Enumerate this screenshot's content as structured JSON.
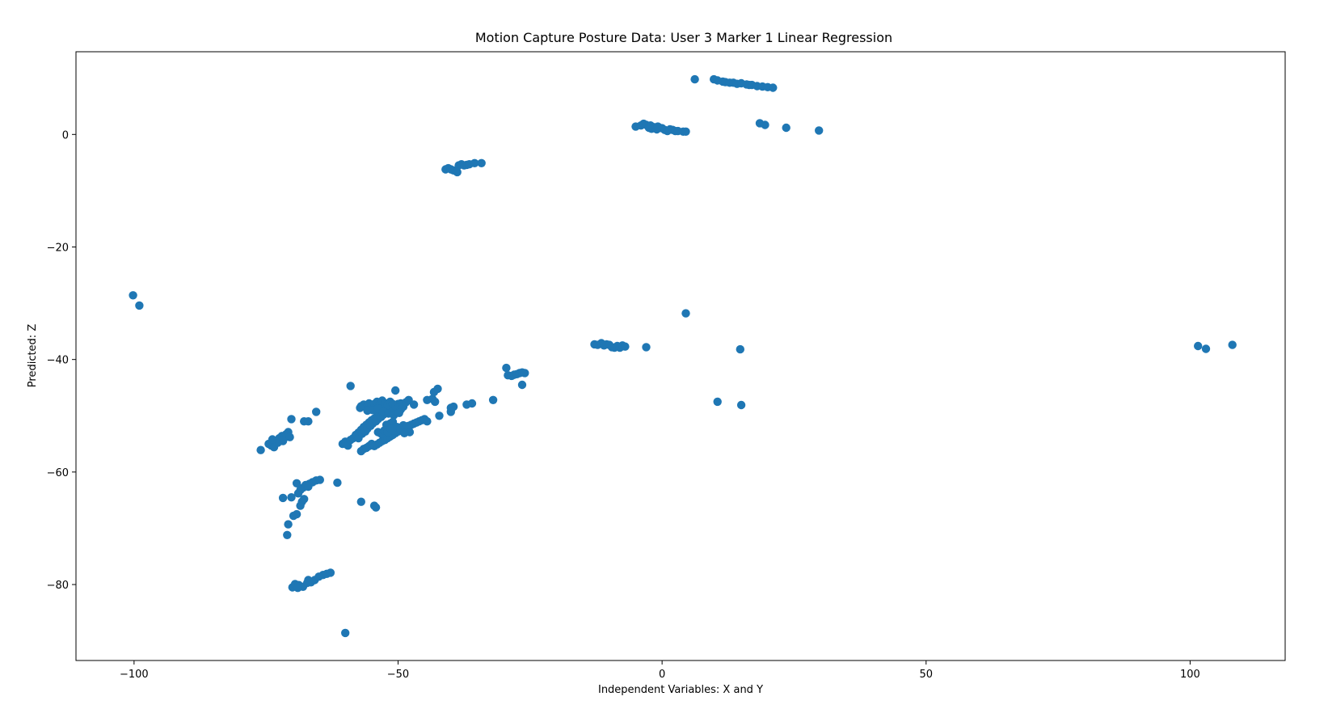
{
  "chart_data": {
    "type": "scatter",
    "title": "Motion Capture Posture Data: User 3 Marker 1 Linear Regression",
    "xlabel": "Independent Variables: X and Y",
    "ylabel": "Predicted: Z",
    "xlim": [
      -111,
      118
    ],
    "ylim": [
      -93.5,
      14.7
    ],
    "xticks": [
      {
        "value": -100,
        "label": "−100"
      },
      {
        "value": -50,
        "label": "−50"
      },
      {
        "value": 0,
        "label": "0"
      },
      {
        "value": 50,
        "label": "50"
      },
      {
        "value": 100,
        "label": "100"
      }
    ],
    "yticks": [
      {
        "value": 0,
        "label": "0"
      },
      {
        "value": -20,
        "label": "−20"
      },
      {
        "value": -40,
        "label": "−40"
      },
      {
        "value": -60,
        "label": "−60"
      },
      {
        "value": -80,
        "label": "−80"
      }
    ],
    "grid": false,
    "color": "#1f77b4",
    "series": [
      {
        "points": [
          [
            -100.2,
            -28.6
          ],
          [
            -99.0,
            -30.4
          ],
          [
            -60.0,
            -88.6
          ],
          [
            -70.0,
            -80.5
          ],
          [
            -69.5,
            -79.9
          ],
          [
            -68.8,
            -80.1
          ],
          [
            -68.0,
            -80.4
          ],
          [
            -67.2,
            -79.7
          ],
          [
            -66.5,
            -79.6
          ],
          [
            -65.8,
            -79.2
          ],
          [
            -65.0,
            -78.6
          ],
          [
            -64.2,
            -78.3
          ],
          [
            -63.5,
            -78.1
          ],
          [
            -62.8,
            -77.9
          ],
          [
            -69.0,
            -80.6
          ],
          [
            -67.0,
            -79.2
          ],
          [
            -71.0,
            -71.2
          ],
          [
            -70.8,
            -69.3
          ],
          [
            -69.8,
            -67.8
          ],
          [
            -69.2,
            -67.5
          ],
          [
            -68.5,
            -66.0
          ],
          [
            -68.2,
            -65.3
          ],
          [
            -67.8,
            -64.8
          ],
          [
            -70.2,
            -64.5
          ],
          [
            -71.8,
            -64.6
          ],
          [
            -68.0,
            -62.8
          ],
          [
            -67.5,
            -62.3
          ],
          [
            -66.8,
            -62.1
          ],
          [
            -66.2,
            -61.8
          ],
          [
            -65.5,
            -61.5
          ],
          [
            -64.8,
            -61.4
          ],
          [
            -69.2,
            -62.0
          ],
          [
            -68.5,
            -63.2
          ],
          [
            -67.0,
            -62.6
          ],
          [
            -68.9,
            -63.8
          ],
          [
            -61.5,
            -61.9
          ],
          [
            -57.0,
            -65.3
          ],
          [
            -54.5,
            -66.0
          ],
          [
            -54.2,
            -66.3
          ],
          [
            -76.0,
            -56.1
          ],
          [
            -74.5,
            -55.0
          ],
          [
            -74.0,
            -55.3
          ],
          [
            -73.5,
            -55.6
          ],
          [
            -73.2,
            -54.5
          ],
          [
            -72.8,
            -54.8
          ],
          [
            -72.5,
            -54.0
          ],
          [
            -72.0,
            -53.6
          ],
          [
            -71.5,
            -53.9
          ],
          [
            -71.2,
            -53.3
          ],
          [
            -70.8,
            -52.9
          ],
          [
            -70.5,
            -53.8
          ],
          [
            -70.2,
            -50.6
          ],
          [
            -73.8,
            -54.2
          ],
          [
            -71.8,
            -54.5
          ],
          [
            -67.8,
            -51.0
          ],
          [
            -67.0,
            -51.0
          ],
          [
            -65.5,
            -49.3
          ],
          [
            -60.5,
            -55.0
          ],
          [
            -60.0,
            -54.6
          ],
          [
            -59.5,
            -55.3
          ],
          [
            -59.0,
            -54.3
          ],
          [
            -58.5,
            -54.0
          ],
          [
            -58.0,
            -53.4
          ],
          [
            -57.5,
            -53.0
          ],
          [
            -57.0,
            -52.5
          ],
          [
            -56.5,
            -52.0
          ],
          [
            -56.0,
            -51.6
          ],
          [
            -55.5,
            -51.2
          ],
          [
            -55.0,
            -50.8
          ],
          [
            -54.5,
            -50.5
          ],
          [
            -54.0,
            -50.1
          ],
          [
            -53.5,
            -49.8
          ],
          [
            -53.0,
            -49.4
          ],
          [
            -52.5,
            -49.0
          ],
          [
            -52.0,
            -48.7
          ],
          [
            -51.5,
            -48.5
          ],
          [
            -51.0,
            -48.3
          ],
          [
            -50.5,
            -48.1
          ],
          [
            -50.0,
            -47.9
          ],
          [
            -49.5,
            -47.8
          ],
          [
            -57.5,
            -54.0
          ],
          [
            -56.8,
            -53.2
          ],
          [
            -56.2,
            -52.8
          ],
          [
            -55.8,
            -52.3
          ],
          [
            -55.2,
            -51.8
          ],
          [
            -54.8,
            -51.4
          ],
          [
            -54.2,
            -51.0
          ],
          [
            -53.8,
            -50.6
          ],
          [
            -53.2,
            -50.2
          ],
          [
            -52.8,
            -49.8
          ],
          [
            -52.2,
            -49.4
          ],
          [
            -51.8,
            -49.1
          ],
          [
            -51.2,
            -48.8
          ],
          [
            -50.8,
            -48.6
          ],
          [
            -57.0,
            -48.3
          ],
          [
            -56.5,
            -48.0
          ],
          [
            -56.0,
            -48.5
          ],
          [
            -55.5,
            -47.8
          ],
          [
            -55.0,
            -48.2
          ],
          [
            -54.5,
            -47.9
          ],
          [
            -54.0,
            -47.5
          ],
          [
            -53.5,
            -48.0
          ],
          [
            -53.0,
            -47.3
          ],
          [
            -52.5,
            -47.8
          ],
          [
            -52.0,
            -48.1
          ],
          [
            -51.5,
            -47.5
          ],
          [
            -51.0,
            -47.9
          ],
          [
            -50.5,
            -48.3
          ],
          [
            -50.0,
            -48.6
          ],
          [
            -49.5,
            -48.9
          ],
          [
            -49.0,
            -48.4
          ],
          [
            -48.5,
            -47.6
          ],
          [
            -48.0,
            -47.2
          ],
          [
            -47.0,
            -48.0
          ],
          [
            -57.2,
            -48.6
          ],
          [
            -55.8,
            -49.1
          ],
          [
            -54.8,
            -49.0
          ],
          [
            -53.8,
            -48.7
          ],
          [
            -52.8,
            -49.2
          ],
          [
            -51.8,
            -49.6
          ],
          [
            -50.8,
            -49.9
          ],
          [
            -49.8,
            -49.5
          ],
          [
            -50.5,
            -45.5
          ],
          [
            -59.0,
            -44.7
          ],
          [
            -51.5,
            -51.4
          ],
          [
            -51.0,
            -51.1
          ],
          [
            -52.2,
            -51.6
          ],
          [
            -57.0,
            -56.3
          ],
          [
            -56.5,
            -55.9
          ],
          [
            -56.0,
            -55.7
          ],
          [
            -55.5,
            -55.4
          ],
          [
            -55.0,
            -55.0
          ],
          [
            -54.5,
            -55.4
          ],
          [
            -54.0,
            -55.1
          ],
          [
            -53.5,
            -54.8
          ],
          [
            -53.0,
            -54.5
          ],
          [
            -52.5,
            -54.3
          ],
          [
            -52.0,
            -54.0
          ],
          [
            -51.5,
            -53.7
          ],
          [
            -51.0,
            -53.4
          ],
          [
            -50.5,
            -53.1
          ],
          [
            -50.0,
            -52.8
          ],
          [
            -49.5,
            -52.5
          ],
          [
            -49.0,
            -52.2
          ],
          [
            -48.5,
            -52.0
          ],
          [
            -48.0,
            -51.8
          ],
          [
            -47.5,
            -51.6
          ],
          [
            -47.0,
            -51.4
          ],
          [
            -46.5,
            -51.2
          ],
          [
            -46.0,
            -51.0
          ],
          [
            -45.5,
            -50.8
          ],
          [
            -45.0,
            -50.6
          ],
          [
            -44.5,
            -51.0
          ],
          [
            -53.8,
            -52.9
          ],
          [
            -53.2,
            -53.2
          ],
          [
            -52.6,
            -52.6
          ],
          [
            -52.0,
            -52.9
          ],
          [
            -51.4,
            -52.3
          ],
          [
            -50.8,
            -52.6
          ],
          [
            -50.2,
            -52.0
          ],
          [
            -49.6,
            -52.3
          ],
          [
            -49.0,
            -51.7
          ],
          [
            -48.4,
            -51.9
          ],
          [
            -47.8,
            -52.9
          ],
          [
            -48.8,
            -53.1
          ],
          [
            -44.5,
            -47.2
          ],
          [
            -43.5,
            -47.0
          ],
          [
            -43.0,
            -47.5
          ],
          [
            -43.2,
            -45.8
          ],
          [
            -42.5,
            -45.2
          ],
          [
            -42.2,
            -50.0
          ],
          [
            -40.0,
            -49.3
          ],
          [
            -40.0,
            -48.6
          ],
          [
            -39.5,
            -48.4
          ],
          [
            -37.0,
            -48.0
          ],
          [
            -36.0,
            -47.8
          ],
          [
            -32.0,
            -47.2
          ],
          [
            -29.5,
            -41.5
          ],
          [
            -29.2,
            -42.8
          ],
          [
            -28.5,
            -42.9
          ],
          [
            -28.0,
            -42.7
          ],
          [
            -27.5,
            -42.6
          ],
          [
            -27.0,
            -42.4
          ],
          [
            -26.5,
            -42.3
          ],
          [
            -26.0,
            -42.4
          ],
          [
            -26.5,
            -44.5
          ],
          [
            -41.0,
            -6.2
          ],
          [
            -40.5,
            -6.0
          ],
          [
            -40.0,
            -6.2
          ],
          [
            -39.5,
            -6.4
          ],
          [
            -38.8,
            -6.7
          ],
          [
            -38.5,
            -5.5
          ],
          [
            -38.0,
            -5.3
          ],
          [
            -37.5,
            -5.5
          ],
          [
            -37.0,
            -5.4
          ],
          [
            -36.5,
            -5.3
          ],
          [
            -35.5,
            -5.1
          ],
          [
            -34.2,
            -5.1
          ],
          [
            -12.8,
            -37.3
          ],
          [
            -12.2,
            -37.4
          ],
          [
            -11.5,
            -37.1
          ],
          [
            -11.0,
            -37.5
          ],
          [
            -10.5,
            -37.3
          ],
          [
            -10.0,
            -37.4
          ],
          [
            -9.5,
            -37.8
          ],
          [
            -9.0,
            -37.9
          ],
          [
            -8.5,
            -37.6
          ],
          [
            -8.0,
            -37.9
          ],
          [
            -7.5,
            -37.5
          ],
          [
            -7.0,
            -37.7
          ],
          [
            -3.0,
            -37.8
          ],
          [
            4.5,
            -31.8
          ],
          [
            14.8,
            -38.2
          ],
          [
            10.5,
            -47.5
          ],
          [
            15.0,
            -48.1
          ],
          [
            -5.0,
            1.4
          ],
          [
            -4.0,
            1.6
          ],
          [
            -3.5,
            1.9
          ],
          [
            -3.0,
            1.7
          ],
          [
            -2.5,
            1.2
          ],
          [
            -2.0,
            1.0
          ],
          [
            -1.5,
            1.3
          ],
          [
            -1.0,
            0.9
          ],
          [
            -0.5,
            1.2
          ],
          [
            0.0,
            1.1
          ],
          [
            0.5,
            0.8
          ],
          [
            1.0,
            0.6
          ],
          [
            1.5,
            0.9
          ],
          [
            2.0,
            0.8
          ],
          [
            2.5,
            0.6
          ],
          [
            3.0,
            0.6
          ],
          [
            4.0,
            0.5
          ],
          [
            4.5,
            0.5
          ],
          [
            -2.2,
            1.6
          ],
          [
            -0.8,
            1.4
          ],
          [
            6.2,
            9.8
          ],
          [
            9.8,
            9.8
          ],
          [
            10.5,
            9.6
          ],
          [
            11.5,
            9.4
          ],
          [
            12.0,
            9.3
          ],
          [
            12.8,
            9.2
          ],
          [
            13.5,
            9.2
          ],
          [
            14.2,
            9.0
          ],
          [
            15.0,
            9.1
          ],
          [
            16.0,
            8.9
          ],
          [
            16.5,
            8.8
          ],
          [
            17.0,
            8.8
          ],
          [
            18.0,
            8.6
          ],
          [
            19.0,
            8.5
          ],
          [
            20.0,
            8.4
          ],
          [
            21.0,
            8.3
          ],
          [
            18.5,
            2.0
          ],
          [
            19.5,
            1.7
          ],
          [
            23.5,
            1.2
          ],
          [
            29.7,
            0.7
          ],
          [
            101.5,
            -37.6
          ],
          [
            103.0,
            -38.1
          ],
          [
            108.0,
            -37.4
          ]
        ]
      }
    ]
  }
}
